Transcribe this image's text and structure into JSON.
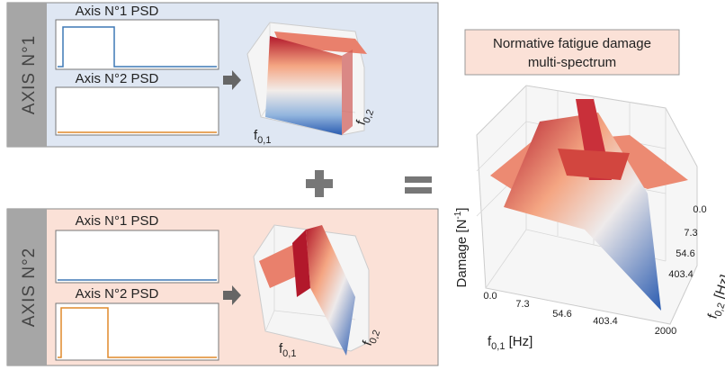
{
  "panels": [
    {
      "label": "AXIS N°1",
      "psd": [
        {
          "title": "Axis N°1 PSD"
        },
        {
          "title": "Axis N°2 PSD"
        }
      ],
      "x_axis": {
        "symbol": "f",
        "subscript": "0,1"
      },
      "y_axis": {
        "symbol": "f",
        "subscript": "0,2"
      }
    },
    {
      "label": "AXIS N°2",
      "psd": [
        {
          "title": "Axis N°1 PSD"
        },
        {
          "title": "Axis N°2 PSD"
        }
      ],
      "x_axis": {
        "symbol": "f",
        "subscript": "0,1"
      },
      "y_axis": {
        "symbol": "f",
        "subscript": "0,2"
      }
    }
  ],
  "result": {
    "title": [
      "Normative fatigue damage",
      "multi-spectrum"
    ],
    "z_axis": {
      "text": "Damage [N",
      "superscript": "-1",
      "close": "]"
    },
    "x_axis": {
      "symbol": "f",
      "subscript": "0,1",
      "unit": " [Hz]",
      "ticks": [
        "0.0",
        "7.3",
        "54.6",
        "403.4",
        "2000"
      ]
    },
    "y_axis": {
      "symbol": "f",
      "subscript": "0,2",
      "unit": " [Hz]",
      "ticks": [
        "0.0",
        "7.3",
        "54.6",
        "403.4"
      ]
    }
  }
}
